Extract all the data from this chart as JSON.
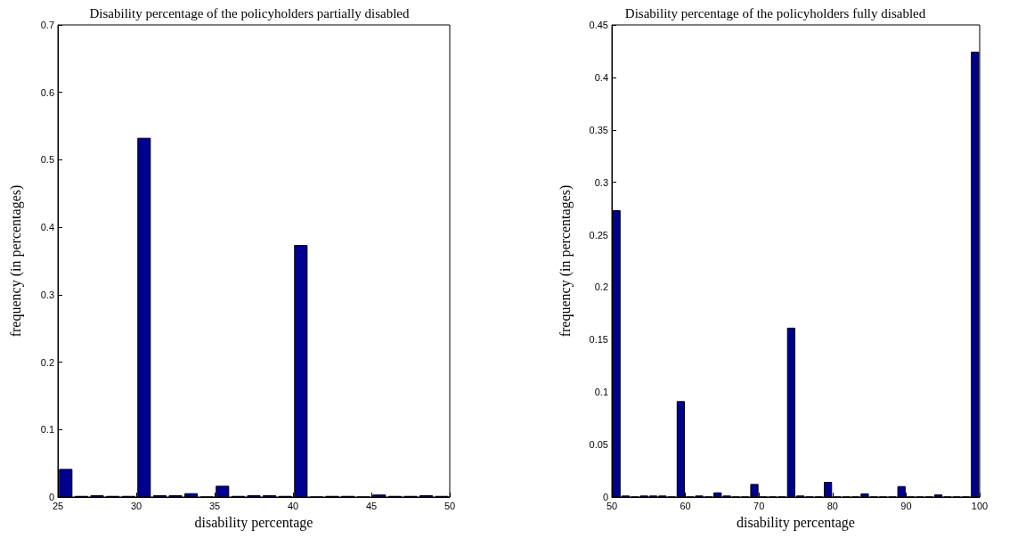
{
  "chart_data": [
    {
      "type": "histogram",
      "title": "Disability percentage of the policyholders partially disabled",
      "xlabel": "disability percentage",
      "ylabel": "frequency (in percentages)",
      "color": "#00008f",
      "bins": [
        25,
        26,
        27,
        28,
        29,
        30,
        31,
        32,
        33,
        34,
        35,
        36,
        37,
        38,
        39,
        40,
        41,
        42,
        43,
        44,
        45,
        46,
        47,
        48,
        49,
        50
      ],
      "values": [
        0.041,
        0.001,
        0.002,
        0.001,
        0.001,
        0.532,
        0.002,
        0.002,
        0.005,
        0,
        0.016,
        0.001,
        0.002,
        0.002,
        0.001,
        0.373,
        0,
        0.001,
        0.001,
        0,
        0.003,
        0.001,
        0.001,
        0.002,
        0.001
      ],
      "xlim": [
        25,
        50
      ],
      "xticks": [
        25,
        30,
        35,
        40,
        45,
        50
      ],
      "ylim": [
        0,
        0.7
      ],
      "yticks": [
        0,
        0.1,
        0.2,
        0.3,
        0.4,
        0.5,
        0.6,
        0.7
      ],
      "grid": false
    },
    {
      "type": "histogram",
      "title": "Disability percentage of the policyholders fully disabled",
      "xlabel": "disability percentage",
      "ylabel": "frequency (in percentages)",
      "color": "#00008f",
      "bins": [
        50,
        51.25,
        52.5,
        53.75,
        55,
        56.25,
        57.5,
        58.75,
        60,
        61.25,
        62.5,
        63.75,
        65,
        66.25,
        67.5,
        68.75,
        70,
        71.25,
        72.5,
        73.75,
        75,
        76.25,
        77.5,
        78.75,
        80,
        81.25,
        82.5,
        83.75,
        85,
        86.25,
        87.5,
        88.75,
        90,
        91.25,
        92.5,
        93.75,
        95,
        96.25,
        97.5,
        98.75,
        100
      ],
      "values": [
        0.273,
        0.001,
        0,
        0.001,
        0.001,
        0.001,
        0,
        0.091,
        0,
        0.001,
        0,
        0.004,
        0.001,
        0,
        0,
        0.012,
        0,
        0,
        0,
        0.161,
        0.001,
        0,
        0,
        0.014,
        0,
        0,
        0,
        0.003,
        0,
        0,
        0,
        0.01,
        0,
        0,
        0,
        0.002,
        0,
        0,
        0,
        0.424
      ],
      "xlim": [
        50,
        100
      ],
      "xticks": [
        50,
        60,
        70,
        80,
        90,
        100
      ],
      "ylim": [
        0,
        0.45
      ],
      "yticks": [
        0,
        0.05,
        0.1,
        0.15,
        0.2,
        0.25,
        0.3,
        0.35,
        0.4,
        0.45
      ],
      "grid": false
    }
  ]
}
